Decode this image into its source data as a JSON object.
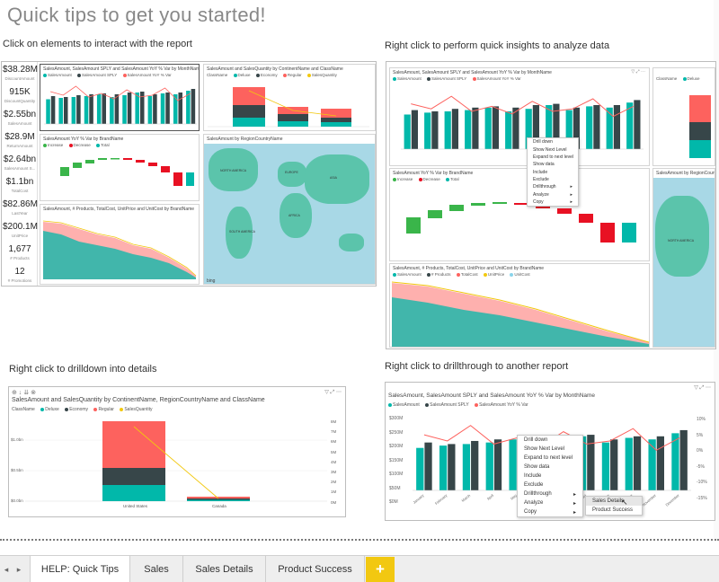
{
  "title": "Quick tips to get you started!",
  "captions": {
    "click": "Click on elements to interact with the report",
    "quick_insights": "Right click to perform quick insights to analyze data",
    "drilldown": "Right click to drilldown into details",
    "drillthrough": "Right click to drillthrough to another report"
  },
  "kpis": [
    {
      "value": "$38.28M",
      "label": "DiscountAmount"
    },
    {
      "value": "915K",
      "label": "DiscountQuantity"
    },
    {
      "value": "$2.55bn",
      "label": "SalesAmount"
    },
    {
      "value": "$28.9M",
      "label": "ReturnAmount"
    },
    {
      "value": "$2.64bn",
      "label": "SalesAmount S..."
    },
    {
      "value": "$1.1bn",
      "label": "TotalCost"
    },
    {
      "value": "$82.86M",
      "label": "LastYear"
    },
    {
      "value": "$200.1M",
      "label": "UnitPrice"
    },
    {
      "value": "1,677",
      "label": "# Products"
    },
    {
      "value": "12",
      "label": "# Promotions"
    }
  ],
  "visual_titles": {
    "monthly": "SalesAmount, SalesAmount SPLY and SalesAmount YoY % Var by MonthName",
    "continent": "SalesAmount and SalesQuantity by ContinentName and ClassName",
    "brand_var": "SalesAmount YoY % Var by BrandName",
    "region_map": "SalesAmount by RegionCountryName",
    "products": "SalesAmount, # Products, TotalCost, UnitPrice and UnitCost by BrandName",
    "drilldown_title": "SalesAmount and SalesQuantity by ContinentName, RegionCountryName and ClassName",
    "drillthrough_title": "SalesAmount, SalesAmount SPLY and SalesAmount YoY % Var by MonthName"
  },
  "legends": {
    "monthly": [
      "SalesAmount",
      "SalesAmount SPLY",
      "SalesAmount YoY % Var"
    ],
    "class_name_label": "ClassName",
    "classes": [
      "Deluxe",
      "Economy",
      "Regular",
      "SalesQuantity"
    ],
    "brand_var": [
      "Increase",
      "Decrease",
      "Total"
    ],
    "products": [
      "SalesAmount",
      "# Products",
      "TotalCost",
      "UnitPrice",
      "UnitCost"
    ],
    "map_bing": "bing"
  },
  "drilldown_chart": {
    "y_left": [
      "$1.0bn",
      "$0.5bn",
      "$0.0bn"
    ],
    "y_right": [
      "8M",
      "7M",
      "6M",
      "5M",
      "4M",
      "3M",
      "2M",
      "1M",
      "0M"
    ],
    "categories": [
      "United States",
      "Canada"
    ]
  },
  "drillthrough_chart": {
    "y_left": [
      "$300M",
      "$250M",
      "$200M",
      "$150M",
      "$100M",
      "$50M",
      "$0M"
    ],
    "y_right": [
      "10%",
      "5%",
      "0%",
      "-5%",
      "-10%",
      "-15%"
    ],
    "months": [
      "January",
      "February",
      "March",
      "April",
      "May",
      "June",
      "July",
      "August",
      "September",
      "October",
      "November",
      "December"
    ]
  },
  "context_menu_small": [
    "Drill down",
    "Show Next Level",
    "Expand to next level",
    "Show data",
    "Include",
    "Exclude",
    "Drillthrough",
    "Analyze",
    "Copy"
  ],
  "context_menu_large": [
    "Drill down",
    "Show Next Level",
    "Expand to next level",
    "Show data",
    "Include",
    "Exclude",
    "Drillthrough",
    "Analyze",
    "Copy"
  ],
  "drillthrough_submenu": [
    "Sales Details",
    "Product Success"
  ],
  "map_labels": {
    "north_america": "NORTH AMERICA",
    "south_america": "SOUTH AMERICA",
    "africa": "AFRICA",
    "europe": "EUROPE",
    "asia": "ASIA"
  },
  "colors": {
    "teal": "#01b8aa",
    "dark": "#374649",
    "red": "#fd625e",
    "yellow": "#f2c80f",
    "green": "#3ab54a"
  },
  "tabs": [
    {
      "label": "HELP: Quick Tips",
      "active": true
    },
    {
      "label": "Sales",
      "active": false
    },
    {
      "label": "Sales Details",
      "active": false
    },
    {
      "label": "Product Success",
      "active": false
    }
  ],
  "add_tab_label": "+"
}
